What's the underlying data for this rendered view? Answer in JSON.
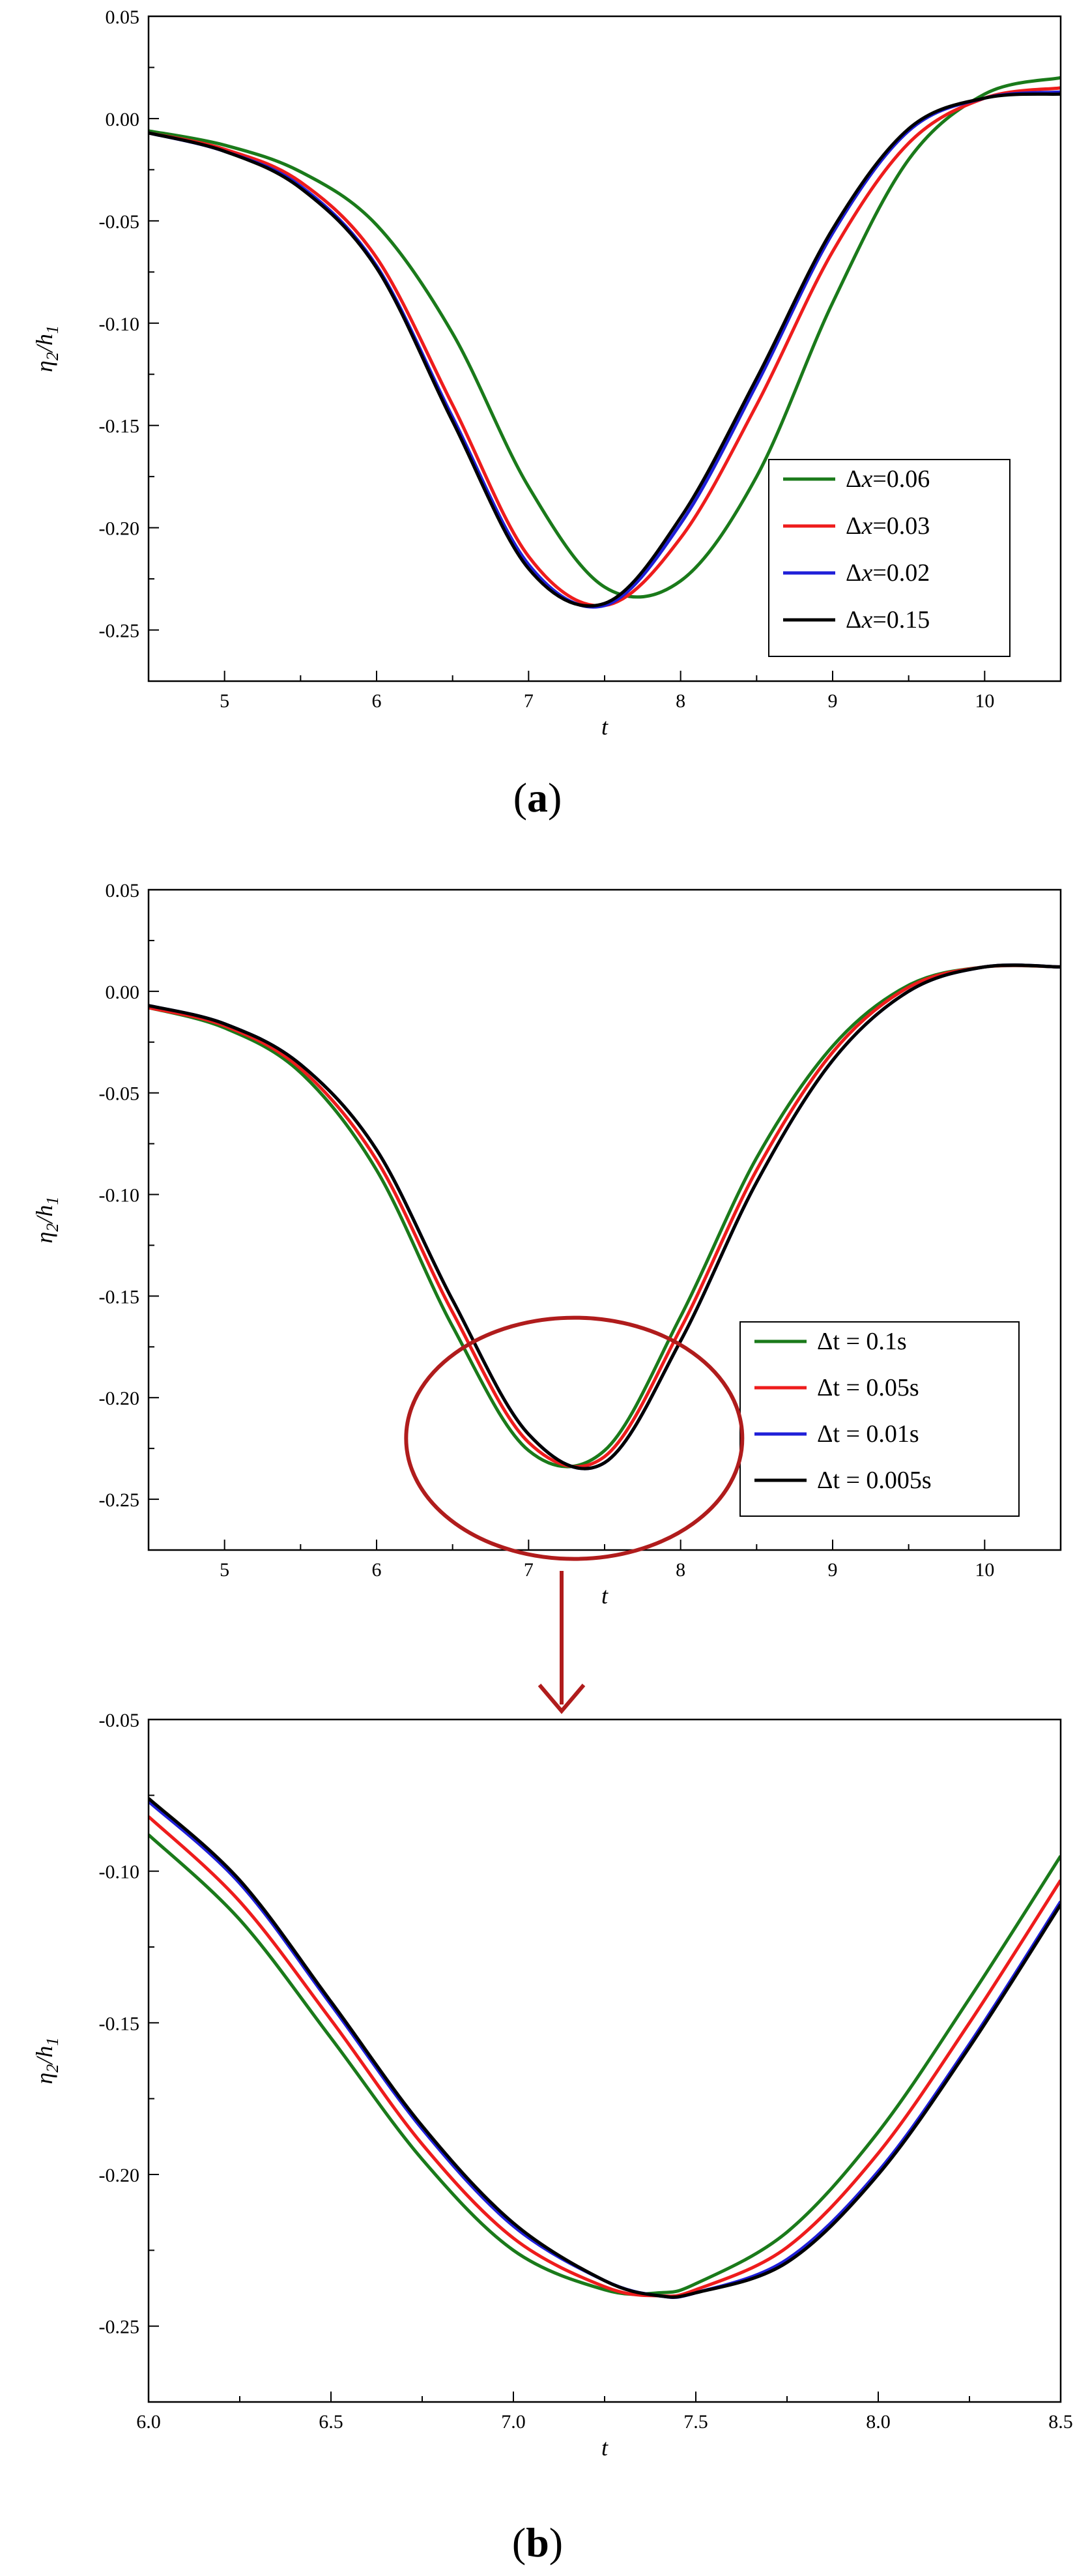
{
  "chart_data": [
    {
      "id": "a",
      "type": "line",
      "caption": {
        "open": "(",
        "letter": "a",
        "close": ")"
      },
      "xlabel": "t",
      "ylabel": {
        "main": "η",
        "sub1": "2",
        "slash": "/h",
        "sub2": "1"
      },
      "xlim": [
        4.5,
        10.5
      ],
      "ylim": [
        -0.275,
        0.05
      ],
      "xticks": [
        5,
        6,
        7,
        8,
        9,
        10
      ],
      "xtick_labels": [
        "5",
        "6",
        "7",
        "8",
        "9",
        "10"
      ],
      "yticks": [
        0.05,
        0.0,
        -0.05,
        -0.1,
        -0.15,
        -0.2,
        -0.25
      ],
      "ytick_labels": [
        "0.05",
        "0.00",
        "-0.05",
        "-0.10",
        "-0.15",
        "-0.20",
        "-0.25"
      ],
      "legend_position": "lower-right",
      "series": [
        {
          "name": "Δx=0.06",
          "color": "#1a7a1a",
          "x": [
            4.5,
            5,
            5.5,
            6,
            6.5,
            7,
            7.5,
            8,
            8.5,
            9,
            9.5,
            10,
            10.5
          ],
          "y": [
            -0.006,
            -0.013,
            -0.026,
            -0.052,
            -0.105,
            -0.18,
            -0.229,
            -0.226,
            -0.175,
            -0.09,
            -0.02,
            0.012,
            0.02
          ]
        },
        {
          "name": "Δx=0.03",
          "color": "#ee1c1c",
          "x": [
            4.5,
            5,
            5.5,
            6,
            6.5,
            7,
            7.5,
            8,
            8.5,
            9,
            9.5,
            10,
            10.5
          ],
          "y": [
            -0.007,
            -0.015,
            -0.031,
            -0.068,
            -0.14,
            -0.214,
            -0.238,
            -0.205,
            -0.14,
            -0.065,
            -0.012,
            0.01,
            0.015
          ]
        },
        {
          "name": "Δx=0.02",
          "color": "#1f1fd8",
          "x": [
            4.5,
            5,
            5.5,
            6,
            6.5,
            7,
            7.5,
            8,
            8.5,
            9,
            9.5,
            10,
            10.5
          ],
          "y": [
            -0.007,
            -0.016,
            -0.033,
            -0.072,
            -0.146,
            -0.218,
            -0.238,
            -0.198,
            -0.13,
            -0.056,
            -0.006,
            0.01,
            0.013
          ]
        },
        {
          "name": "Δx=0.15",
          "color": "#000000",
          "x": [
            4.5,
            5,
            5.5,
            6,
            6.5,
            7,
            7.5,
            8,
            8.5,
            9,
            9.5,
            10,
            10.5
          ],
          "y": [
            -0.007,
            -0.016,
            -0.034,
            -0.073,
            -0.148,
            -0.22,
            -0.237,
            -0.195,
            -0.127,
            -0.054,
            -0.005,
            0.01,
            0.012
          ]
        }
      ]
    },
    {
      "id": "b-top",
      "type": "line",
      "xlabel": "t",
      "ylabel": {
        "main": "η",
        "sub1": "2",
        "slash": "/h",
        "sub2": "1"
      },
      "xlim": [
        4.5,
        10.5
      ],
      "ylim": [
        -0.275,
        0.05
      ],
      "xticks": [
        5,
        6,
        7,
        8,
        9,
        10
      ],
      "xtick_labels": [
        "5",
        "6",
        "7",
        "8",
        "9",
        "10"
      ],
      "yticks": [
        0.05,
        0.0,
        -0.05,
        -0.1,
        -0.15,
        -0.2,
        -0.25
      ],
      "ytick_labels": [
        "0.05",
        "0.00",
        "-0.05",
        "-0.10",
        "-0.15",
        "-0.20",
        "-0.25"
      ],
      "legend_position": "lower-right",
      "annotation": {
        "type": "ellipse-highlight",
        "x_center": 7.3,
        "y_center": -0.22,
        "color": "#b01c1c"
      },
      "series": [
        {
          "name": "Δt = 0.1s",
          "color": "#1a7a1a",
          "x": [
            4.5,
            5,
            5.5,
            6,
            6.5,
            7,
            7.5,
            8,
            8.5,
            9,
            9.5,
            10,
            10.5
          ],
          "y": [
            -0.008,
            -0.018,
            -0.04,
            -0.088,
            -0.165,
            -0.226,
            -0.226,
            -0.16,
            -0.082,
            -0.027,
            0.003,
            0.012,
            0.012
          ]
        },
        {
          "name": "Δt = 0.05s",
          "color": "#ee1c1c",
          "x": [
            4.5,
            5,
            5.5,
            6,
            6.5,
            7,
            7.5,
            8,
            8.5,
            9,
            9.5,
            10,
            10.5
          ],
          "y": [
            -0.008,
            -0.017,
            -0.038,
            -0.083,
            -0.158,
            -0.222,
            -0.229,
            -0.166,
            -0.088,
            -0.03,
            0.002,
            0.012,
            0.012
          ]
        },
        {
          "name": "Δt = 0.01s",
          "color": "#1f1fd8",
          "x": [
            4.5,
            5,
            5.5,
            6,
            6.5,
            7,
            7.5,
            8,
            8.5,
            9,
            9.5,
            10,
            10.5
          ],
          "y": [
            -0.007,
            -0.016,
            -0.036,
            -0.078,
            -0.152,
            -0.218,
            -0.232,
            -0.172,
            -0.094,
            -0.034,
            0.0,
            0.012,
            0.012
          ]
        },
        {
          "name": "Δt = 0.005s",
          "color": "#000000",
          "x": [
            4.5,
            5,
            5.5,
            6,
            6.5,
            7,
            7.5,
            8,
            8.5,
            9,
            9.5,
            10,
            10.5
          ],
          "y": [
            -0.007,
            -0.016,
            -0.036,
            -0.078,
            -0.152,
            -0.218,
            -0.232,
            -0.172,
            -0.094,
            -0.034,
            0.0,
            0.012,
            0.012
          ]
        }
      ]
    },
    {
      "id": "b-zoom",
      "type": "line",
      "caption": {
        "open": "(",
        "letter": "b",
        "close": ")"
      },
      "xlabel": "t",
      "ylabel": {
        "main": "η",
        "sub1": "2",
        "slash": "/h",
        "sub2": "1"
      },
      "xlim": [
        6.0,
        8.5
      ],
      "ylim": [
        -0.275,
        -0.05
      ],
      "xticks": [
        6.0,
        6.5,
        7.0,
        7.5,
        8.0,
        8.5
      ],
      "xtick_labels": [
        "6.0",
        "6.5",
        "7.0",
        "7.5",
        "8.0",
        "8.5"
      ],
      "yticks": [
        -0.05,
        -0.1,
        -0.15,
        -0.2,
        -0.25
      ],
      "ytick_labels": [
        "-0.05",
        "-0.10",
        "-0.15",
        "-0.20",
        "-0.25"
      ],
      "series": [
        {
          "name": "Δt = 0.1s",
          "color": "#1a7a1a",
          "x": [
            6.0,
            6.25,
            6.5,
            6.75,
            7.0,
            7.25,
            7.4,
            7.5,
            7.75,
            8.0,
            8.25,
            8.5
          ],
          "y": [
            -0.088,
            -0.116,
            -0.155,
            -0.195,
            -0.225,
            -0.238,
            -0.239,
            -0.236,
            -0.219,
            -0.186,
            -0.142,
            -0.095
          ]
        },
        {
          "name": "Δt = 0.05s",
          "color": "#ee1c1c",
          "x": [
            6.0,
            6.25,
            6.5,
            6.75,
            7.0,
            7.25,
            7.4,
            7.5,
            7.75,
            8.0,
            8.25,
            8.5
          ],
          "y": [
            -0.082,
            -0.11,
            -0.149,
            -0.19,
            -0.221,
            -0.237,
            -0.24,
            -0.238,
            -0.224,
            -0.193,
            -0.15,
            -0.103
          ]
        },
        {
          "name": "Δt = 0.01s",
          "color": "#1f1fd8",
          "x": [
            6.0,
            6.25,
            6.5,
            6.75,
            7.0,
            7.25,
            7.4,
            7.5,
            7.75,
            8.0,
            8.25,
            8.5
          ],
          "y": [
            -0.077,
            -0.104,
            -0.144,
            -0.185,
            -0.217,
            -0.235,
            -0.24,
            -0.239,
            -0.228,
            -0.199,
            -0.157,
            -0.11
          ]
        },
        {
          "name": "Δt = 0.005s",
          "color": "#000000",
          "x": [
            6.0,
            6.25,
            6.5,
            6.75,
            7.0,
            7.25,
            7.4,
            7.5,
            7.75,
            8.0,
            8.25,
            8.5
          ],
          "y": [
            -0.076,
            -0.103,
            -0.143,
            -0.184,
            -0.216,
            -0.235,
            -0.24,
            -0.239,
            -0.229,
            -0.2,
            -0.158,
            -0.111
          ]
        }
      ]
    }
  ]
}
